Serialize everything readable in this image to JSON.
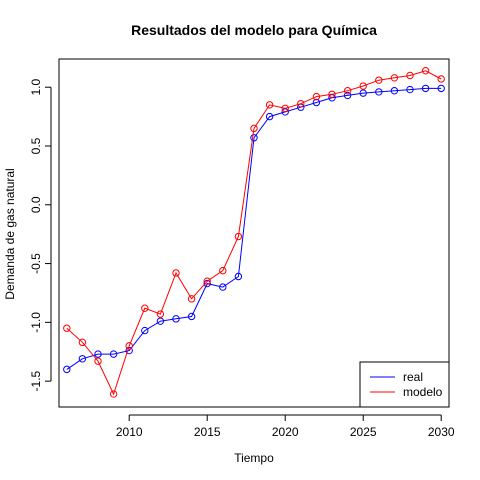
{
  "chart_data": {
    "type": "line",
    "title": "Resultados del modelo para Química",
    "xlabel": "Tiempo",
    "ylabel": "Demanda de gas natural",
    "xlim": [
      2005.5,
      2030.5
    ],
    "ylim": [
      -1.72,
      1.24
    ],
    "xticks": [
      2010,
      2015,
      2020,
      2025,
      2030
    ],
    "yticks": [
      -1.5,
      -1.0,
      -0.5,
      0.0,
      0.5,
      1.0
    ],
    "ytick_labels": [
      "-1.5",
      "-1.0",
      "-0.5",
      "0.0",
      "0.5",
      "1.0"
    ],
    "grid": false,
    "legend_position": "bottom-right",
    "x": [
      2006,
      2007,
      2008,
      2009,
      2010,
      2011,
      2012,
      2013,
      2014,
      2015,
      2016,
      2017,
      2018,
      2019,
      2020,
      2021,
      2022,
      2023,
      2024,
      2025,
      2026,
      2027,
      2028,
      2029,
      2030
    ],
    "series": [
      {
        "name": "real",
        "color": "#0000ff",
        "values": [
          -1.4,
          -1.31,
          -1.27,
          -1.27,
          -1.24,
          -1.07,
          -0.99,
          -0.97,
          -0.95,
          -0.67,
          -0.7,
          -0.61,
          0.57,
          0.75,
          0.79,
          0.83,
          0.87,
          0.91,
          0.93,
          0.95,
          0.96,
          0.97,
          0.98,
          0.99,
          0.99
        ]
      },
      {
        "name": "modelo",
        "color": "#ff0000",
        "values": [
          -1.05,
          -1.17,
          -1.33,
          -1.61,
          -1.2,
          -0.88,
          -0.93,
          -0.58,
          -0.8,
          -0.65,
          -0.56,
          -0.27,
          0.65,
          0.85,
          0.82,
          0.86,
          0.92,
          0.94,
          0.97,
          1.01,
          1.06,
          1.08,
          1.1,
          1.14,
          1.07
        ]
      }
    ]
  }
}
